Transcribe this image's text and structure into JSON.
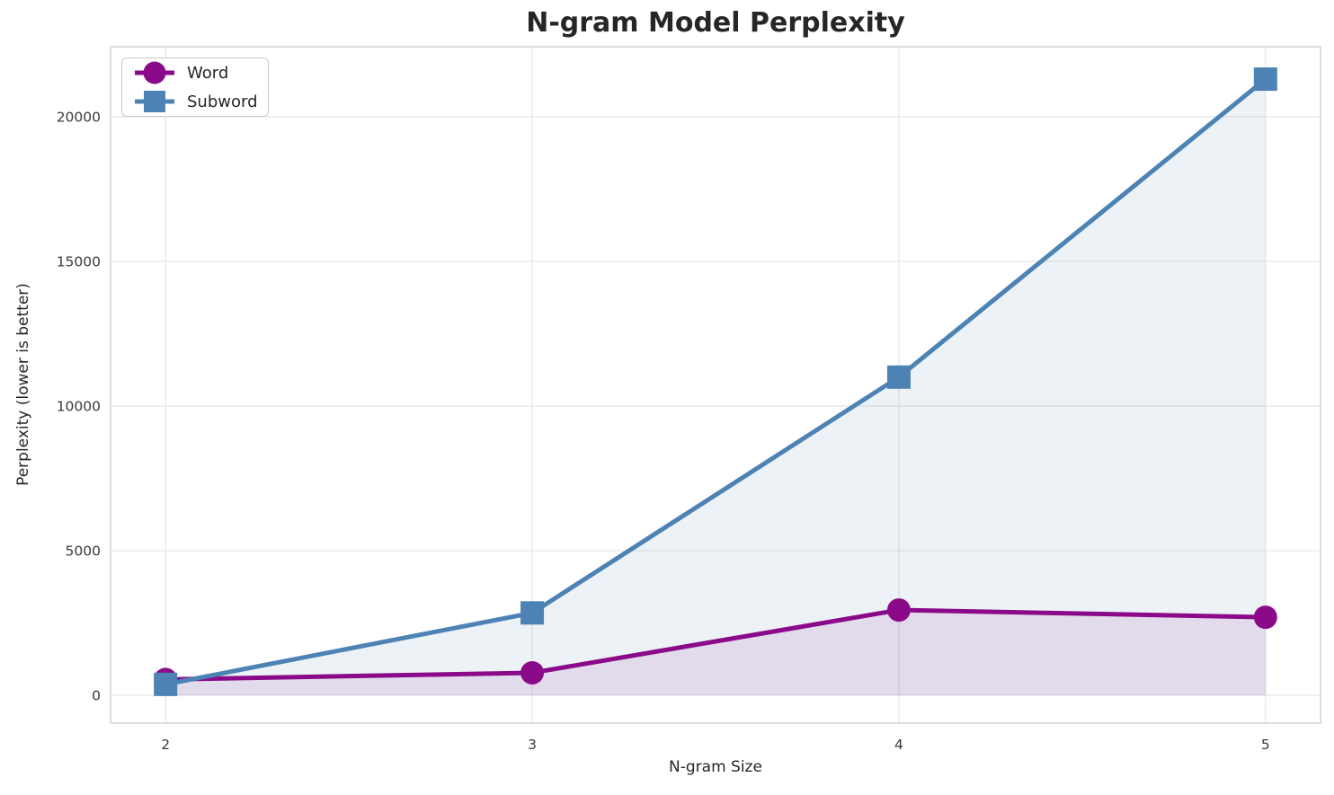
{
  "chart_data": {
    "type": "line",
    "title": "N-gram Model Perplexity",
    "xlabel": "N-gram Size",
    "ylabel": "Perplexity (lower is better)",
    "x": [
      2,
      3,
      4,
      5
    ],
    "series": [
      {
        "name": "Word",
        "marker": "circle",
        "color": "#8a0a8a",
        "values": [
          550,
          780,
          2950,
          2700
        ]
      },
      {
        "name": "Subword",
        "marker": "square",
        "color": "#4c83b4",
        "values": [
          380,
          2850,
          11000,
          21300
        ]
      }
    ],
    "xticks": [
      "2",
      "3",
      "4",
      "5"
    ],
    "xtick_values": [
      2,
      3,
      4,
      5
    ],
    "yticks": [
      "0",
      "5000",
      "10000",
      "15000",
      "20000"
    ],
    "ytick_values": [
      0,
      5000,
      10000,
      15000,
      20000
    ],
    "xlim": [
      1.85,
      5.15
    ],
    "ylim": [
      -960,
      22420
    ],
    "grid": true,
    "area_fill": true,
    "fill_alpha": 0.1,
    "fill_baseline": 0,
    "legend_position": "upper-left"
  },
  "style": {
    "grid_color": "#e9e9e9",
    "spine_color": "#d2d2d2",
    "tick_color": "#3a3a3a",
    "text_color": "#262626",
    "background": "#ffffff",
    "line_width": 5
  }
}
